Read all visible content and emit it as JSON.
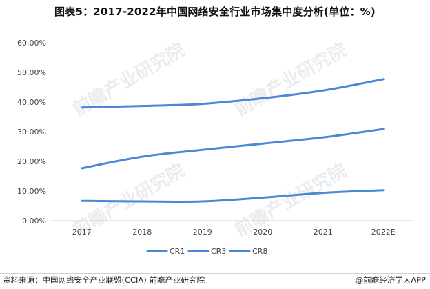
{
  "header": {
    "title": "图表5：2017-2022年中国网络安全行业市场集中度分析(单位：%)"
  },
  "watermark": {
    "text": "前瞻产业研究院"
  },
  "footer": {
    "source": "资料来源：中国网络安全产业联盟(CCIA) 前瞻产业研究院",
    "publisher": "@前瞻经济学人APP"
  },
  "chart_data": {
    "type": "line",
    "categories": [
      "2017",
      "2018",
      "2019",
      "2020",
      "2021",
      "2022E"
    ],
    "series": [
      {
        "name": "CR1",
        "values": [
          6.7,
          6.5,
          6.5,
          7.8,
          9.4,
          10.3
        ]
      },
      {
        "name": "CR3",
        "values": [
          17.7,
          21.6,
          23.9,
          26.0,
          28.1,
          30.9
        ]
      },
      {
        "name": "CR8",
        "values": [
          38.2,
          38.7,
          39.4,
          41.3,
          43.9,
          47.7
        ]
      }
    ],
    "ylim": [
      0,
      60
    ],
    "yticks": [
      "0.00%",
      "10.00%",
      "20.00%",
      "30.00%",
      "40.00%",
      "50.00%",
      "60.00%"
    ],
    "grid": false,
    "legend": "bottom",
    "colors": {
      "line": "#4a87d6",
      "axis": "#d0d0d0",
      "text": "#444444"
    }
  }
}
